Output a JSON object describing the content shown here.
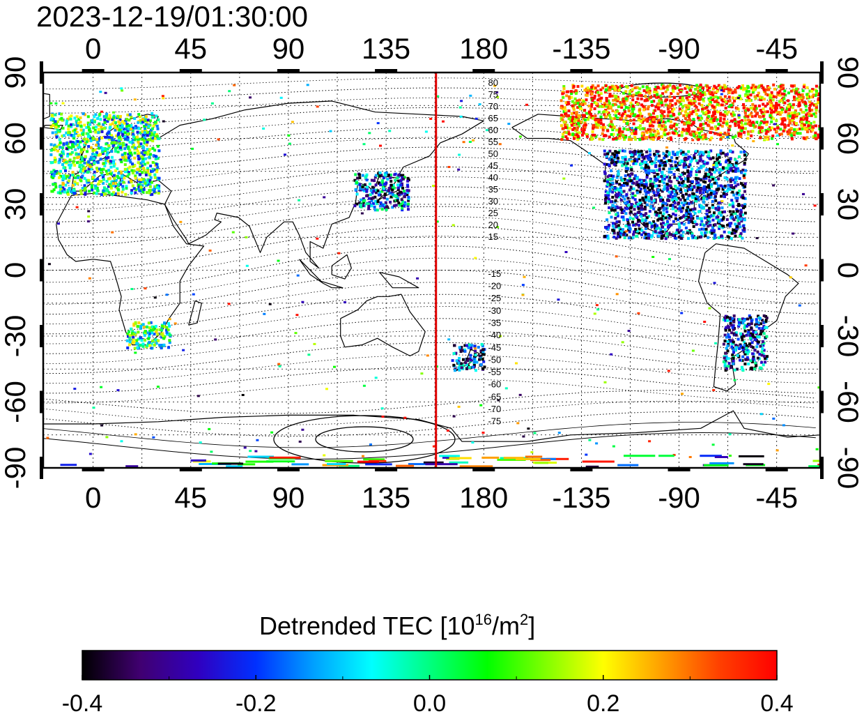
{
  "timestamp": "2023-12-19/01:30:00",
  "lon_ticks": [
    {
      "lon": 0,
      "label": "0"
    },
    {
      "lon": 45,
      "label": "45"
    },
    {
      "lon": 90,
      "label": "90"
    },
    {
      "lon": 135,
      "label": "135"
    },
    {
      "lon": 180,
      "label": "180"
    },
    {
      "lon": 225,
      "label": "-135"
    },
    {
      "lon": 270,
      "label": "-90"
    },
    {
      "lon": 315,
      "label": "-45"
    }
  ],
  "lat_ticks": [
    {
      "lat": 90,
      "label": "90",
      "right_label": "90"
    },
    {
      "lat": 60,
      "label": "60",
      "right_label": "60"
    },
    {
      "lat": 30,
      "label": "30",
      "right_label": "30"
    },
    {
      "lat": 0,
      "label": "0",
      "right_label": "0"
    },
    {
      "lat": -30,
      "label": "-30",
      "right_label": "-30"
    },
    {
      "lat": -60,
      "label": "-60",
      "right_label": "-60"
    },
    {
      "lat": -90,
      "label": "-90",
      "right_label": "-90"
    }
  ],
  "map_extent": {
    "lon_min": -23,
    "lon_max": 335,
    "lat_min": -90,
    "lat_max": 90
  },
  "terminator_lon": 158,
  "terminator_color": "#e00000",
  "contour_labels_north": [
    "80",
    "75",
    "70",
    "65",
    "60",
    "55",
    "50",
    "45",
    "40",
    "35",
    "30",
    "25",
    "20",
    "15"
  ],
  "contour_labels_south": [
    "-15",
    "-20",
    "-25",
    "-30",
    "-35",
    "-40",
    "-45",
    "-50",
    "-55",
    "-60",
    "-65",
    "-70",
    "-75"
  ],
  "colorbar": {
    "title_main": "Detrended TEC  [10",
    "title_sup1": "16",
    "title_mid": "/m",
    "title_sup2": "2",
    "title_end": "]",
    "min": -0.4,
    "max": 0.4,
    "tick_labels": [
      "-0.4",
      "-0.2",
      "0.0",
      "0.2",
      "0.4"
    ],
    "stops": [
      "#000000",
      "#400070",
      "#3000c0",
      "#0030ff",
      "#00a0ff",
      "#00ffff",
      "#00ff80",
      "#00ff00",
      "#80ff00",
      "#ffff00",
      "#ffa000",
      "#ff4000",
      "#ff0000"
    ]
  },
  "tec_regions": [
    {
      "name": "europe",
      "lon": [
        -20,
        30
      ],
      "lat": [
        35,
        72
      ],
      "bias": 0.0
    },
    {
      "name": "north-america",
      "lon": [
        235,
        300
      ],
      "lat": [
        15,
        55
      ],
      "bias": -0.25
    },
    {
      "name": "east-asia",
      "lon": [
        120,
        145
      ],
      "lat": [
        28,
        45
      ],
      "bias": -0.2
    },
    {
      "name": "south-america",
      "lon": [
        290,
        310
      ],
      "lat": [
        -45,
        -20
      ],
      "bias": -0.25
    },
    {
      "name": "new-zealand",
      "lon": [
        165,
        180
      ],
      "lat": [
        -45,
        -33
      ],
      "bias": -0.25
    },
    {
      "name": "southern-africa",
      "lon": [
        15,
        35
      ],
      "lat": [
        -35,
        -23
      ],
      "bias": 0.0
    },
    {
      "name": "arctic-america",
      "lon": [
        215,
        335
      ],
      "lat": [
        60,
        85
      ],
      "bias": 0.3
    }
  ]
}
